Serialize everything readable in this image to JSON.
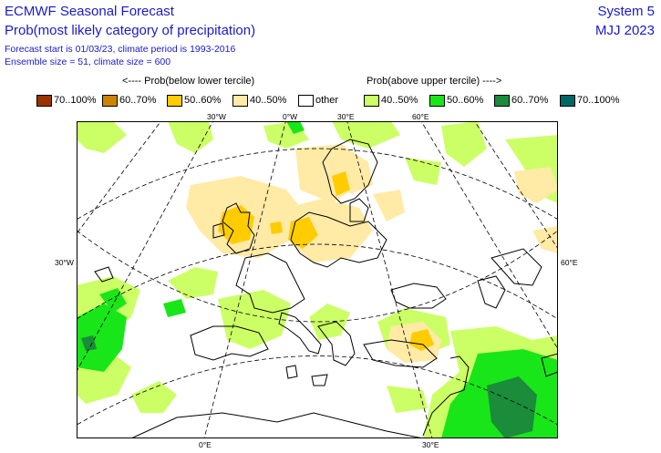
{
  "header": {
    "title": "ECMWF Seasonal Forecast",
    "subtitle": "Prob(most likely category of precipitation)",
    "forecast_info": "Forecast start is 01/03/23, climate period is 1993-2016",
    "ensemble_info": "Ensemble size = 51, climate size = 600",
    "system": "System 5",
    "period": "MJJ 2023"
  },
  "legend": {
    "below_header": "<---- Prob(below lower tercile)",
    "above_header": "Prob(above upper tercile) ---->",
    "items": [
      {
        "label": "70..100%",
        "color": "#993300"
      },
      {
        "label": "60..70%",
        "color": "#cc8400"
      },
      {
        "label": "50..60%",
        "color": "#ffcc00"
      },
      {
        "label": "40..50%",
        "color": "#ffeaa6"
      },
      {
        "label": "other",
        "color": "#ffffff"
      },
      {
        "label": "40..50%",
        "color": "#ccff66"
      },
      {
        "label": "50..60%",
        "color": "#19e619"
      },
      {
        "label": "60..70%",
        "color": "#1a8c3a"
      },
      {
        "label": "70..100%",
        "color": "#006666"
      }
    ]
  },
  "map": {
    "top_labels": [
      "30°W",
      "0°W",
      "30°E",
      "60°E"
    ],
    "left_label": "30°W",
    "right_label": "60°E",
    "bottom_labels": [
      "0°E",
      "30°E"
    ]
  }
}
